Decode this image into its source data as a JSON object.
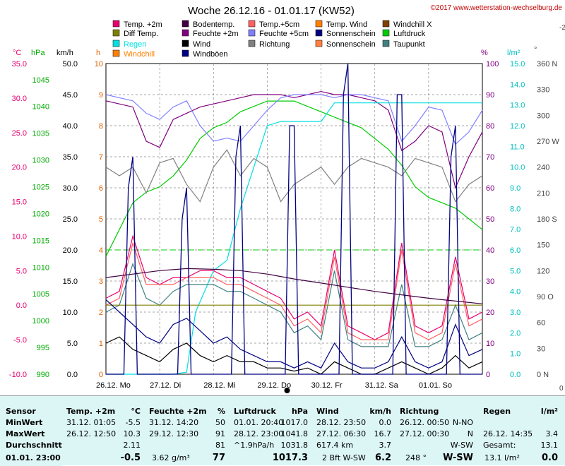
{
  "header": {
    "title": "Woche 26.12.16 - 01.01.17 (KW52)",
    "copyright": "©2017 www.wetterstation-wechselburg.de"
  },
  "legend": [
    {
      "label": "Temp. +2m",
      "color": "#e8006e"
    },
    {
      "label": "Bodentemp.",
      "color": "#400040"
    },
    {
      "label": "Temp.+5cm",
      "color": "#ff6060"
    },
    {
      "label": "Temp. Wind",
      "color": "#ff8000"
    },
    {
      "label": "Windchill X",
      "color": "#804000"
    },
    {
      "label": "Diff Temp.",
      "color": "#808000"
    },
    {
      "label": "Feuchte +2m",
      "color": "#800080"
    },
    {
      "label": "Feuchte +5cm",
      "color": "#8080ff"
    },
    {
      "label": "Sonnenschein",
      "color": "#000080"
    },
    {
      "label": "Luftdruck",
      "color": "#00cc00"
    },
    {
      "label": "Regen",
      "color": "#00e0e0"
    },
    {
      "label": "Wind",
      "color": "#000000"
    },
    {
      "label": "Richtung",
      "color": "#808080"
    },
    {
      "label": "Sonnenschein",
      "color": "#ff8040"
    },
    {
      "label": "Taupunkt",
      "color": "#408080"
    },
    {
      "label": "Windchill",
      "color": "#ff8000"
    },
    {
      "label": "Windböen",
      "color": "#000080"
    }
  ],
  "axes": {
    "unit_c": "°C",
    "unit_hpa": "hPa",
    "unit_kmh": "km/h",
    "unit_h": "h",
    "unit_pct": "%",
    "unit_lm2": "l/m²",
    "unit_deg": "°",
    "temp_ticks": [
      "35.0",
      "30.0",
      "25.0",
      "20.0",
      "15.0",
      "10.0",
      "5.0",
      "0.0",
      "-5.0",
      "-10.0"
    ],
    "hpa_ticks": [
      "1045",
      "1040",
      "1035",
      "1030",
      "1025",
      "1020",
      "1015",
      "1010",
      "1005",
      "1000",
      "995",
      "990"
    ],
    "kmh_ticks": [
      "50.0",
      "45.0",
      "40.0",
      "35.0",
      "30.0",
      "25.0",
      "20.0",
      "15.0",
      "10.0",
      "5.0",
      "0.0"
    ],
    "h_ticks": [
      "10",
      "9",
      "8",
      "7",
      "6",
      "5",
      "4",
      "3",
      "2",
      "1",
      "0"
    ],
    "pct_ticks": [
      "100",
      "90",
      "80",
      "70",
      "60",
      "50",
      "40",
      "30",
      "20",
      "10",
      "0"
    ],
    "rain_ticks": [
      "15.0",
      "14.0",
      "13.0",
      "12.0",
      "11.0",
      "10.0",
      "9.0",
      "8.0",
      "7.0",
      "6.0",
      "5.0",
      "4.0",
      "3.0",
      "2.0",
      "1.0",
      "0.0"
    ],
    "dir_ticks": [
      "360 N",
      "330",
      "300",
      "270 W",
      "240",
      "210",
      "180 S",
      "150",
      "120",
      "90 O",
      "60",
      "30",
      "0 N"
    ],
    "days": [
      "26.12.  Mo",
      "27.12.  Di",
      "28.12.  Mi",
      "29.12.  Do",
      "30.12.  Fr",
      "31.12.  Sa",
      "01.01.  So"
    ],
    "edge_marks": {
      "top": "-2",
      "bottom": "0"
    }
  },
  "chart_data": {
    "type": "line",
    "title": "Woche 26.12.16 - 01.01.17 (KW52)",
    "x_range": [
      "26.12.16 00:00",
      "02.01.17 00:00"
    ],
    "x_unit": "hours since 26.12.16 00:00",
    "ylim_temp": [
      -10,
      35
    ],
    "ylim_hpa": [
      990,
      1048
    ],
    "ylim_kmh": [
      0,
      50
    ],
    "ylim_pct": [
      0,
      100
    ],
    "ylim_rain": [
      0,
      15
    ],
    "series": [
      {
        "name": "Luftdruck",
        "axis": "hpa",
        "color": "#00cc00",
        "x": [
          0,
          6,
          12,
          18,
          24,
          30,
          36,
          42,
          48,
          54,
          60,
          66,
          72,
          78,
          84,
          90,
          96,
          102,
          108,
          114,
          120,
          126,
          132,
          138,
          144,
          150,
          156,
          162,
          168
        ],
        "y": [
          1012,
          1017,
          1022,
          1024,
          1025,
          1027,
          1030,
          1034,
          1036,
          1037,
          1039,
          1040,
          1041,
          1041,
          1041,
          1040,
          1039,
          1038,
          1037,
          1036,
          1034,
          1032,
          1029,
          1025,
          1023,
          1022,
          1021,
          1019,
          1017
        ]
      },
      {
        "name": "Feuchte +2m",
        "axis": "pct",
        "color": "#800080",
        "x": [
          0,
          6,
          12,
          18,
          24,
          30,
          36,
          42,
          48,
          54,
          60,
          66,
          72,
          78,
          84,
          90,
          96,
          102,
          108,
          114,
          120,
          126,
          132,
          138,
          144,
          150,
          156,
          162,
          168
        ],
        "y": [
          88,
          87,
          86,
          75,
          73,
          82,
          84,
          86,
          87,
          88,
          89,
          90,
          90,
          90,
          89,
          90,
          91,
          90,
          90,
          89,
          88,
          85,
          72,
          75,
          80,
          78,
          60,
          70,
          78
        ]
      },
      {
        "name": "Feuchte +5cm",
        "axis": "pct",
        "color": "#8080ff",
        "x": [
          0,
          6,
          12,
          18,
          24,
          30,
          36,
          42,
          48,
          54,
          60,
          66,
          72,
          78,
          84,
          90,
          96,
          102,
          108,
          114,
          120,
          126,
          132,
          138,
          144,
          150,
          156,
          162,
          168
        ],
        "y": [
          90,
          89,
          88,
          84,
          82,
          86,
          88,
          80,
          75,
          76,
          75,
          80,
          85,
          89,
          90,
          90,
          90,
          89,
          90,
          90,
          89,
          88,
          75,
          80,
          86,
          85,
          74,
          78,
          85
        ]
      },
      {
        "name": "Regen",
        "axis": "rain",
        "color": "#00e0e0",
        "x": [
          0,
          30,
          36,
          40,
          44,
          48,
          54,
          60,
          66,
          72,
          78,
          90,
          96,
          102,
          108,
          120,
          132,
          144,
          156,
          168
        ],
        "y": [
          0,
          0,
          0.1,
          3,
          4,
          5,
          5.5,
          8,
          10,
          12,
          12.2,
          12.2,
          12.2,
          13.1,
          13.1,
          13.1,
          13.1,
          13.1,
          13.1,
          13.1
        ]
      },
      {
        "name": "Temp. +2m",
        "axis": "temp",
        "color": "#e8006e",
        "x": [
          0,
          6,
          12,
          18,
          24,
          30,
          36,
          42,
          48,
          54,
          60,
          66,
          72,
          78,
          84,
          90,
          96,
          102,
          108,
          114,
          120,
          126,
          132,
          138,
          144,
          150,
          156,
          162,
          168
        ],
        "y": [
          1,
          2,
          10,
          4,
          3,
          4,
          4,
          5,
          5,
          4,
          4,
          3,
          2,
          1,
          -2,
          -1,
          -3,
          8,
          -3,
          -4,
          -5,
          -4,
          9,
          -3,
          -4,
          -3,
          7,
          -2,
          -1
        ]
      },
      {
        "name": "Temp.+5cm",
        "axis": "temp",
        "color": "#ff6060",
        "x": [
          0,
          6,
          12,
          18,
          24,
          30,
          36,
          42,
          48,
          54,
          60,
          66,
          72,
          78,
          84,
          90,
          96,
          102,
          108,
          114,
          120,
          126,
          132,
          138,
          144,
          150,
          156,
          162,
          168
        ],
        "y": [
          0,
          1,
          9,
          3,
          3,
          3,
          4,
          4,
          4,
          3,
          3,
          2,
          1,
          0,
          -3,
          -2,
          -4,
          7,
          -4,
          -5,
          -5,
          -5,
          8,
          -4,
          -5,
          -4,
          6,
          -3,
          -2
        ]
      },
      {
        "name": "Taupunkt",
        "axis": "temp",
        "color": "#408080",
        "x": [
          0,
          6,
          12,
          18,
          24,
          30,
          36,
          42,
          48,
          54,
          60,
          66,
          72,
          78,
          84,
          90,
          96,
          102,
          108,
          114,
          120,
          126,
          132,
          138,
          144,
          150,
          156,
          162,
          168
        ],
        "y": [
          -1,
          0,
          6,
          1,
          0,
          2,
          3,
          3,
          3,
          2,
          2,
          1,
          0,
          -1,
          -4,
          -3,
          -5,
          5,
          -5,
          -6,
          -6,
          -6,
          3,
          -6,
          -6,
          -5,
          0,
          -5,
          -4
        ]
      },
      {
        "name": "Bodentemp.",
        "axis": "temp",
        "color": "#400040",
        "x": [
          0,
          12,
          24,
          36,
          48,
          60,
          72,
          84,
          96,
          108,
          120,
          132,
          144,
          156,
          168
        ],
        "y": [
          4,
          4.5,
          5,
          5.3,
          5.2,
          5,
          4.5,
          3.8,
          3.2,
          2.6,
          2,
          1.5,
          1,
          0.6,
          0.2
        ]
      },
      {
        "name": "Diff Temp.",
        "axis": "temp",
        "color": "#808000",
        "x": [
          0,
          12,
          24,
          36,
          48,
          60,
          72,
          84,
          96,
          108,
          120,
          132,
          144,
          156,
          168
        ],
        "y": [
          0,
          0,
          0,
          0,
          0,
          0,
          0,
          0,
          0,
          0,
          0,
          0,
          0,
          0,
          0
        ]
      },
      {
        "name": "Richtung",
        "axis": "deg",
        "color": "#808080",
        "x": [
          0,
          6,
          12,
          18,
          24,
          30,
          36,
          42,
          48,
          54,
          60,
          66,
          72,
          78,
          84,
          90,
          96,
          102,
          108,
          114,
          120,
          126,
          132,
          138,
          144,
          150,
          156,
          162,
          168
        ],
        "y": [
          240,
          230,
          240,
          210,
          245,
          250,
          220,
          200,
          240,
          260,
          230,
          250,
          240,
          200,
          220,
          230,
          240,
          220,
          240,
          250,
          245,
          240,
          230,
          250,
          245,
          240,
          200,
          220,
          230
        ]
      },
      {
        "name": "Wind",
        "axis": "kmh",
        "color": "#000000",
        "x": [
          0,
          6,
          12,
          18,
          24,
          30,
          36,
          42,
          48,
          54,
          60,
          66,
          72,
          78,
          84,
          90,
          96,
          102,
          108,
          114,
          120,
          126,
          132,
          138,
          144,
          150,
          156,
          162,
          168
        ],
        "y": [
          5,
          6,
          4,
          3,
          2,
          4,
          5,
          3,
          2,
          3,
          2,
          2,
          1,
          1,
          0.5,
          1,
          0,
          2,
          1,
          0,
          0,
          1,
          2,
          1,
          0,
          1,
          3,
          1,
          2
        ]
      },
      {
        "name": "Windböen",
        "axis": "kmh",
        "color": "#000080",
        "x": [
          0,
          6,
          12,
          18,
          24,
          30,
          36,
          42,
          48,
          54,
          60,
          66,
          72,
          78,
          84,
          90,
          96,
          102,
          108,
          114,
          120,
          126,
          132,
          138,
          144,
          150,
          156,
          162,
          168
        ],
        "y": [
          12,
          10,
          8,
          6,
          5,
          8,
          9,
          7,
          5,
          6,
          4,
          3,
          2,
          2,
          1,
          2,
          1,
          5,
          2,
          1,
          1,
          2,
          6,
          2,
          1,
          2,
          8,
          3,
          4
        ]
      },
      {
        "name": "Sonnenschein",
        "axis": "h",
        "color": "#000080",
        "x": [
          0,
          8,
          10,
          12,
          14,
          20,
          32,
          34,
          36,
          38,
          44,
          56,
          58,
          60,
          62,
          68,
          80,
          82,
          84,
          86,
          92,
          104,
          106,
          108,
          110,
          116,
          128,
          130,
          132,
          134,
          140,
          152,
          154,
          156,
          158,
          164,
          168
        ],
        "y": [
          0,
          0,
          6,
          7,
          0,
          0,
          0,
          5,
          6,
          0,
          0,
          0,
          7,
          8,
          0,
          0,
          0,
          8,
          8,
          0,
          0,
          0,
          9,
          10,
          0,
          0,
          0,
          9,
          9,
          0,
          0,
          0,
          7,
          8,
          0,
          0,
          0
        ]
      }
    ],
    "hlines": [
      {
        "axis": "pct",
        "value": 40,
        "color": "#00cc00"
      }
    ]
  },
  "stats": {
    "headers": {
      "sensor": "Sensor",
      "temp": "Temp. +2m",
      "temp_unit": "°C",
      "hum": "Feuchte +2m",
      "hum_unit": "%",
      "press": "Luftdruck",
      "press_unit": "hPa",
      "wind": "Wind",
      "wind_unit": "km/h",
      "dir": "Richtung",
      "rain": "Regen",
      "rain_unit": "l/m²"
    },
    "rows": {
      "min": "MinWert",
      "max": "MaxWert",
      "avg": "Durchschnitt",
      "now": "01.01.  23:00"
    },
    "temp": {
      "min_time": "31.12.  01:05",
      "min_val": "-5.5",
      "max_time": "26.12.  12:50",
      "max_val": "10.3",
      "avg": "2.11",
      "now": "-0.5"
    },
    "hum": {
      "min_time": "31.12.  14:20",
      "min_val": "50",
      "max_time": "29.12.  12:30",
      "max_val": "91",
      "avg": "81",
      "now_abs": "3.62 g/m³",
      "now": "77"
    },
    "press": {
      "min_time": "01.01.  20:40",
      "min_val": "1017.0",
      "max_time": "28.12.  23:00",
      "max_val": "1041.8",
      "trend": "^1.9hPa/h",
      "avg": "1031.8",
      "now": "1017.3"
    },
    "wind": {
      "min_time": "28.12.  23:50",
      "min_val": "0.0",
      "max_time": "27.12.  06:30",
      "max_val": "16.7",
      "dist": "617.4 km",
      "avg": "3.7",
      "bft": "2 Bft W-SW",
      "now": "6.2"
    },
    "dir": {
      "min_time": "26.12.  00:50",
      "min_val": "N-NO",
      "max_time": "27.12.  00:30",
      "max_val": "N",
      "avg": "W-SW",
      "deg": "248 °",
      "now": "W-SW"
    },
    "rain": {
      "max_time": "26.12.  14:35",
      "max_val": "3.4",
      "total_label": "Gesamt:",
      "total": "13.1",
      "now_sum": "13.1 l/m²",
      "now": "0.0"
    }
  }
}
